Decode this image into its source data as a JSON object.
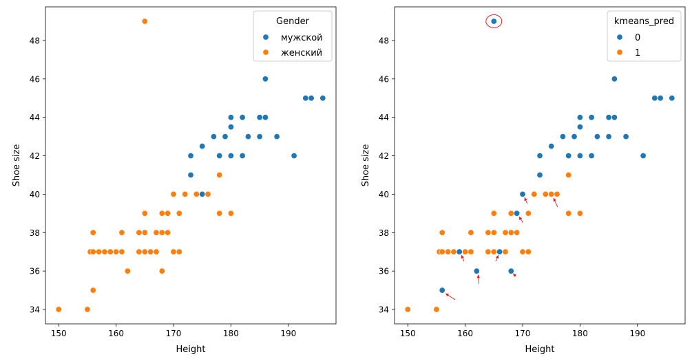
{
  "chart_data": [
    {
      "type": "scatter",
      "xlabel": "Height",
      "ylabel": "Shoe size",
      "xlim": [
        147.7,
        198.3
      ],
      "ylim": [
        33.25,
        49.75
      ],
      "xticks": [
        "150",
        "160",
        "170",
        "180",
        "190"
      ],
      "yticks": [
        "34",
        "36",
        "38",
        "40",
        "42",
        "44",
        "46",
        "48"
      ],
      "grid": false,
      "legend": {
        "title": "Gender",
        "placement": "top-right"
      },
      "series": [
        {
          "name": "мужской",
          "color": "#1f77b4",
          "points": [
            [
              173,
              41
            ],
            [
              173,
              42
            ],
            [
              175,
              40
            ],
            [
              175,
              42.5
            ],
            [
              177,
              43
            ],
            [
              178,
              42
            ],
            [
              179,
              43
            ],
            [
              180,
              42
            ],
            [
              180,
              43.5
            ],
            [
              180,
              44
            ],
            [
              182,
              42
            ],
            [
              182,
              44
            ],
            [
              183,
              43
            ],
            [
              185,
              43
            ],
            [
              185,
              44
            ],
            [
              186,
              44
            ],
            [
              186,
              46
            ],
            [
              188,
              43
            ],
            [
              191,
              42
            ],
            [
              193,
              45
            ],
            [
              194,
              45
            ],
            [
              196,
              45
            ]
          ]
        },
        {
          "name": "женский",
          "color": "#ff7f0e",
          "points": [
            [
              150,
              34
            ],
            [
              155,
              34
            ],
            [
              155.5,
              37
            ],
            [
              156,
              37
            ],
            [
              156,
              38
            ],
            [
              156,
              35
            ],
            [
              157,
              37
            ],
            [
              158,
              37
            ],
            [
              159,
              37
            ],
            [
              160,
              37
            ],
            [
              161,
              37
            ],
            [
              161,
              38
            ],
            [
              162,
              36
            ],
            [
              164,
              38
            ],
            [
              164,
              37
            ],
            [
              165,
              38
            ],
            [
              165,
              37
            ],
            [
              165,
              39
            ],
            [
              165,
              49
            ],
            [
              166,
              37
            ],
            [
              167,
              37
            ],
            [
              167,
              38
            ],
            [
              168,
              39
            ],
            [
              168,
              38
            ],
            [
              168,
              36
            ],
            [
              169,
              39
            ],
            [
              169,
              38
            ],
            [
              170,
              37
            ],
            [
              170,
              40
            ],
            [
              171,
              37
            ],
            [
              171,
              39
            ],
            [
              172,
              40
            ],
            [
              174,
              40
            ],
            [
              176,
              40
            ],
            [
              178,
              41
            ],
            [
              178,
              39
            ],
            [
              180,
              39
            ]
          ]
        }
      ]
    },
    {
      "type": "scatter",
      "xlabel": "Height",
      "ylabel": "Shoe size",
      "xlim": [
        147.7,
        198.3
      ],
      "ylim": [
        33.25,
        49.75
      ],
      "xticks": [
        "150",
        "160",
        "170",
        "180",
        "190"
      ],
      "yticks": [
        "34",
        "36",
        "38",
        "40",
        "42",
        "44",
        "46",
        "48"
      ],
      "grid": false,
      "legend": {
        "title": "kmeans_pred",
        "placement": "top-right"
      },
      "series": [
        {
          "name": "0",
          "color": "#1f77b4",
          "points": [
            [
              156,
              35
            ],
            [
              159,
              37
            ],
            [
              162,
              36
            ],
            [
              165,
              49
            ],
            [
              166,
              37
            ],
            [
              168,
              36
            ],
            [
              169,
              39
            ],
            [
              170,
              40
            ],
            [
              173,
              41
            ],
            [
              173,
              42
            ],
            [
              175,
              42.5
            ],
            [
              177,
              43
            ],
            [
              178,
              42
            ],
            [
              179,
              43
            ],
            [
              180,
              42
            ],
            [
              180,
              43.5
            ],
            [
              180,
              44
            ],
            [
              182,
              42
            ],
            [
              182,
              44
            ],
            [
              183,
              43
            ],
            [
              185,
              43
            ],
            [
              185,
              44
            ],
            [
              186,
              44
            ],
            [
              186,
              46
            ],
            [
              188,
              43
            ],
            [
              191,
              42
            ],
            [
              193,
              45
            ],
            [
              194,
              45
            ],
            [
              196,
              45
            ]
          ]
        },
        {
          "name": "1",
          "color": "#ff7f0e",
          "points": [
            [
              150,
              34
            ],
            [
              155,
              34
            ],
            [
              155.5,
              37
            ],
            [
              156,
              37
            ],
            [
              156,
              38
            ],
            [
              157,
              37
            ],
            [
              158,
              37
            ],
            [
              160,
              37
            ],
            [
              161,
              37
            ],
            [
              161,
              38
            ],
            [
              164,
              38
            ],
            [
              164,
              37
            ],
            [
              165,
              38
            ],
            [
              165,
              37
            ],
            [
              165,
              39
            ],
            [
              167,
              37
            ],
            [
              167,
              38
            ],
            [
              168,
              39
            ],
            [
              168,
              38
            ],
            [
              169,
              38
            ],
            [
              170,
              37
            ],
            [
              171,
              37
            ],
            [
              171,
              39
            ],
            [
              172,
              40
            ],
            [
              174,
              40
            ],
            [
              175,
              40
            ],
            [
              176,
              40
            ],
            [
              178,
              41
            ],
            [
              178,
              39
            ],
            [
              180,
              39
            ]
          ]
        }
      ],
      "annotations": {
        "circled_point": [
          165,
          49
        ],
        "arrow_color": "#e41a1c",
        "arrow_targets": [
          [
            156,
            35
          ],
          [
            159,
            37
          ],
          [
            162,
            36
          ],
          [
            166,
            37
          ],
          [
            168,
            36
          ],
          [
            169,
            39
          ],
          [
            170,
            40
          ],
          [
            175,
            40
          ]
        ]
      }
    }
  ]
}
